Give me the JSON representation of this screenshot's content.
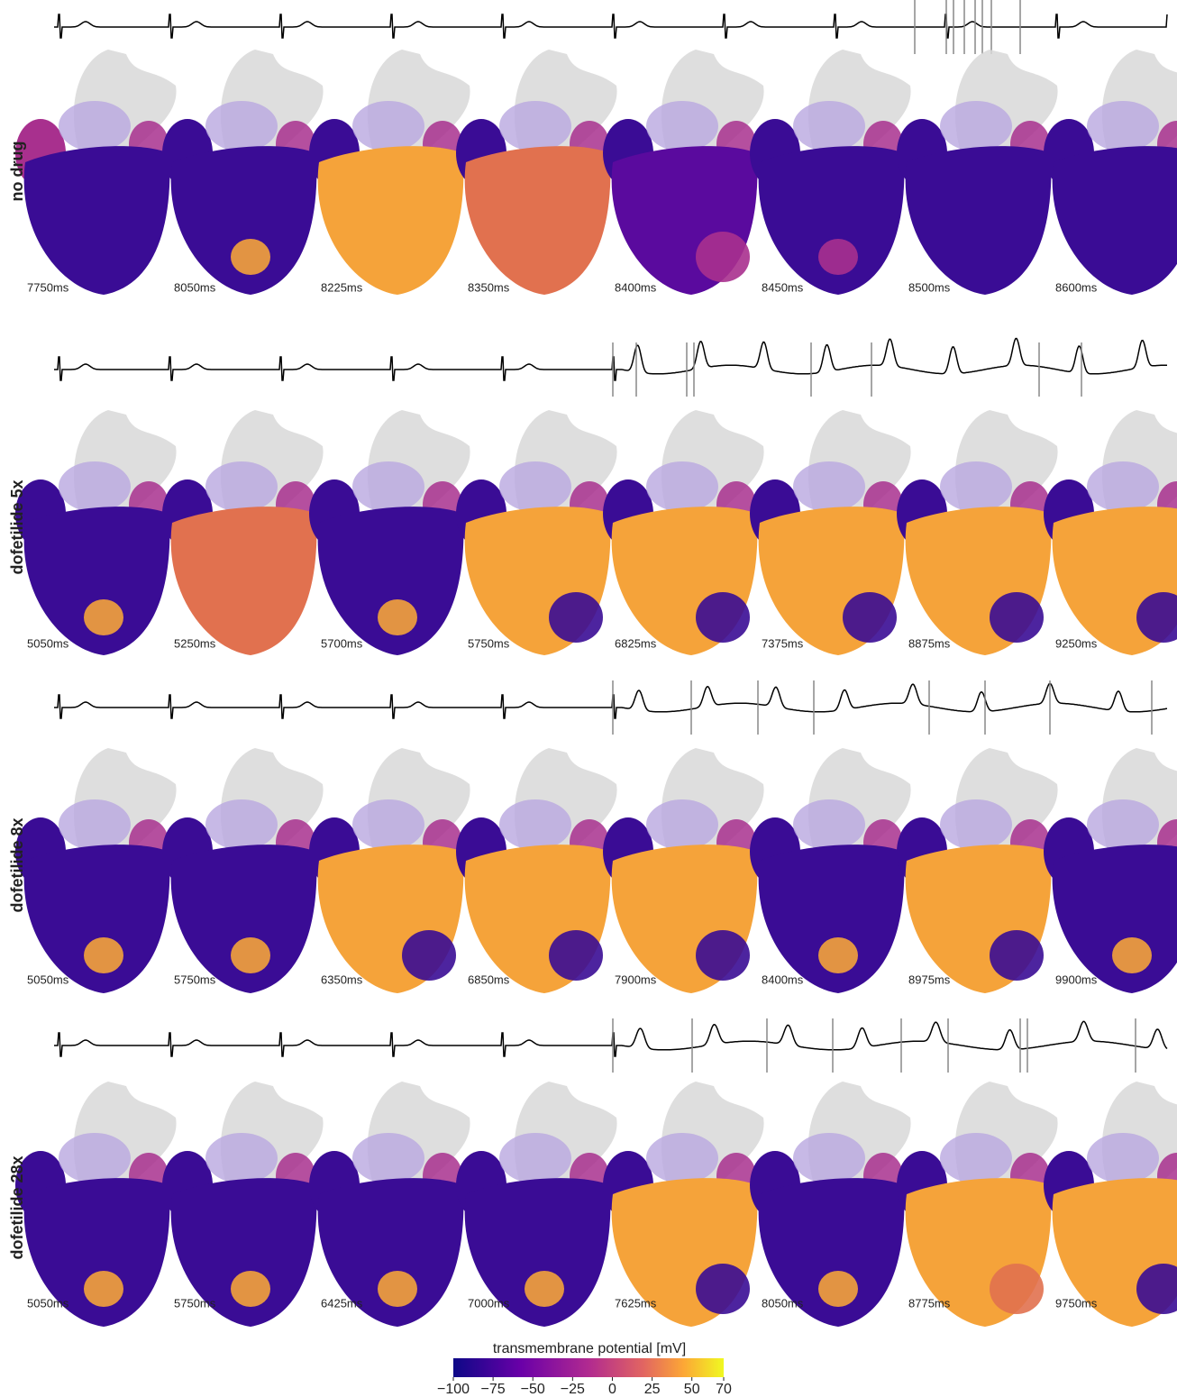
{
  "rows": [
    {
      "label": "no drug",
      "times": [
        "7750ms",
        "8050ms",
        "8225ms",
        "8350ms",
        "8400ms",
        "8450ms",
        "8500ms",
        "8600ms"
      ]
    },
    {
      "label": "dofetilide 5x",
      "times": [
        "5050ms",
        "5250ms",
        "5700ms",
        "5750ms",
        "6825ms",
        "7375ms",
        "8875ms",
        "9250ms"
      ]
    },
    {
      "label": "dofetilide 8x",
      "times": [
        "5050ms",
        "5750ms",
        "6350ms",
        "6850ms",
        "7900ms",
        "8400ms",
        "8975ms",
        "9900ms"
      ]
    },
    {
      "label": "dofetilide 28x",
      "times": [
        "5050ms",
        "5750ms",
        "6425ms",
        "7000ms",
        "7625ms",
        "8050ms",
        "8775ms",
        "9750ms"
      ]
    }
  ],
  "colorbar": {
    "title": "transmembrane potential [mV]",
    "lim": [
      -100,
      70
    ],
    "ticks": [
      {
        "value": -100,
        "label": "−100"
      },
      {
        "value": -75,
        "label": "−75"
      },
      {
        "value": -50,
        "label": "−50"
      },
      {
        "value": -25,
        "label": "−25"
      },
      0,
      25,
      50,
      70
    ]
  }
}
